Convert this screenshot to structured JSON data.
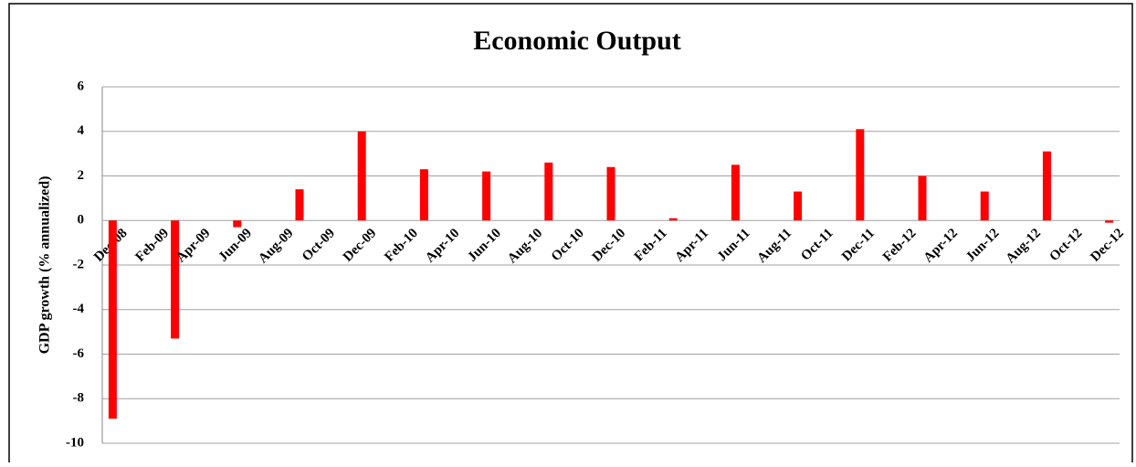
{
  "chart_data": {
    "type": "bar",
    "title": "Economic Output",
    "y_label": "GDP growth (% annualized)",
    "categories": [
      "Dec-08",
      null,
      "Feb-09",
      null,
      "Apr-09",
      null,
      "Jun-09",
      null,
      "Aug-09",
      null,
      "Oct-09",
      null,
      "Dec-09",
      null,
      "Feb-10",
      null,
      "Apr-10",
      null,
      "Jun-10",
      null,
      "Aug-10",
      null,
      "Oct-10",
      null,
      "Dec-10",
      null,
      "Feb-11",
      null,
      "Apr-11",
      null,
      "Jun-11",
      null,
      "Aug-11",
      null,
      "Oct-11",
      null,
      "Dec-11",
      null,
      "Feb-12",
      null,
      "Apr-12",
      null,
      "Jun-12",
      null,
      "Aug-12",
      null,
      "Oct-12",
      null,
      "Dec-12"
    ],
    "values": [
      -8.9,
      null,
      null,
      -5.3,
      null,
      null,
      -0.3,
      null,
      null,
      1.4,
      null,
      null,
      4.0,
      null,
      null,
      2.3,
      null,
      null,
      2.2,
      null,
      null,
      2.6,
      null,
      null,
      2.4,
      null,
      null,
      0.1,
      null,
      null,
      2.5,
      null,
      null,
      1.3,
      null,
      null,
      4.1,
      null,
      null,
      2.0,
      null,
      null,
      1.3,
      null,
      null,
      3.1,
      null,
      null,
      -0.1
    ],
    "color": "#ff0000",
    "ylim": [
      -10,
      6
    ],
    "yticks": [
      -10,
      -8,
      -6,
      -4,
      -2,
      0,
      2,
      4,
      6
    ],
    "grid": true
  }
}
